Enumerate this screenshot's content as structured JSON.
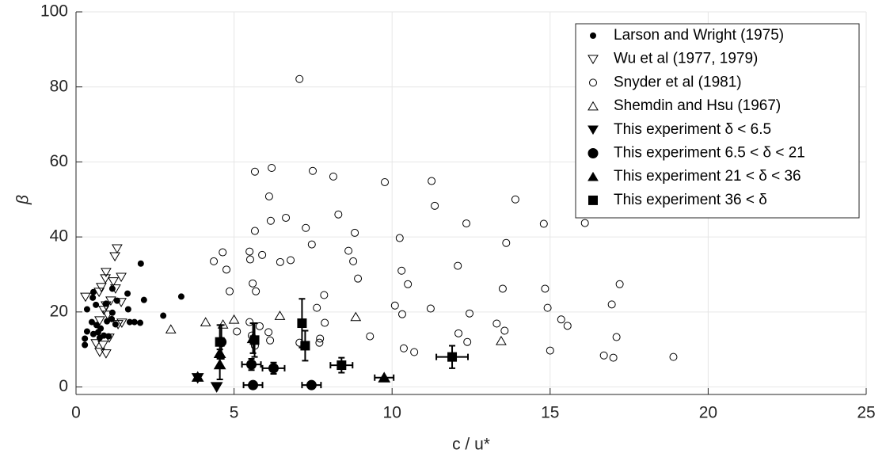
{
  "chart_data": {
    "type": "scatter",
    "x_label": "c / u*",
    "y_label": "β",
    "xlim": [
      0,
      25
    ],
    "ylim": [
      -2,
      100
    ],
    "xticks": [
      0,
      5,
      10,
      15,
      20,
      25
    ],
    "yticks": [
      0,
      20,
      40,
      60,
      80,
      100
    ],
    "grid": true,
    "legend": "upper right",
    "series": [
      {
        "name": "Larson and Wright (1975)",
        "color": "#000000",
        "marker": "circle",
        "filled": true,
        "size": 3.5,
        "x": [
          0.28,
          0.28,
          0.35,
          0.35,
          0.5,
          0.53,
          0.55,
          0.63,
          0.65,
          0.55,
          0.7,
          0.78,
          0.75,
          0.88,
          0.95,
          0.98,
          1.03,
          1.13,
          1.15,
          1.25,
          1.3,
          1.63,
          1.65,
          1.7,
          1.85,
          2.03,
          2.05,
          2.15,
          2.76,
          3.33,
          1.15
        ],
        "y": [
          11.2,
          12.9,
          14.8,
          20.7,
          17.3,
          23.8,
          25.3,
          21.9,
          16.5,
          14.1,
          14.6,
          15.6,
          13.1,
          13.7,
          22.2,
          17.5,
          13.5,
          18.1,
          26.2,
          16.7,
          23.0,
          24.9,
          20.7,
          17.3,
          17.3,
          17.1,
          32.9,
          23.2,
          19.0,
          24.1,
          19.8
        ]
      },
      {
        "name": "Wu et al (1977, 1979)",
        "color": "#000000",
        "marker": "triangle-down",
        "filled": false,
        "size": 6,
        "x": [
          0.3,
          0.73,
          0.8,
          0.93,
          0.95,
          0.95,
          1.0,
          0.63,
          0.75,
          0.95,
          0.85,
          0.75,
          1.18,
          1.25,
          1.23,
          1.3,
          1.43,
          1.43,
          1.33,
          1.45,
          0.88,
          1.1,
          1.05
        ],
        "y": [
          24,
          25.3,
          26.6,
          28.9,
          30.6,
          21.7,
          19.2,
          11.6,
          9.3,
          8.9,
          11.2,
          17.7,
          28.1,
          26.2,
          34.8,
          36.9,
          29.3,
          22.6,
          16.7,
          17.1,
          20.5,
          23.0,
          13.1
        ]
      },
      {
        "name": "Snyder et al (1981)",
        "color": "#000000",
        "marker": "circle",
        "filled": false,
        "size": 4.5,
        "x": [
          7.07,
          6.19,
          5.66,
          7.49,
          8.14,
          9.77,
          11.25,
          11.35,
          13.9,
          16.1,
          14.8,
          12.35,
          6.11,
          6.16,
          6.64,
          8.3,
          5.66,
          7.27,
          8.82,
          10.24,
          4.36,
          4.64,
          4.76,
          5.49,
          5.51,
          5.89,
          6.46,
          6.79,
          7.46,
          8.62,
          8.77,
          10.3,
          12.08,
          13.61,
          8.92,
          4.86,
          5.59,
          5.69,
          10.5,
          13.5,
          14.84,
          17.2,
          7.62,
          7.85,
          10.09,
          11.22,
          14.92,
          16.95,
          10.32,
          12.45,
          5.09,
          5.49,
          5.81,
          6.09,
          6.14,
          7.07,
          7.72,
          7.87,
          5.56,
          5.66,
          9.3,
          12.1,
          13.31,
          13.56,
          12.38,
          10.37,
          10.7,
          15.0,
          15.35,
          15.55,
          17.1,
          16.7,
          17.0,
          18.9,
          7.7
        ],
        "y": [
          82.1,
          58.4,
          57.4,
          57.6,
          56.1,
          54.6,
          54.9,
          48.3,
          50.0,
          43.7,
          43.5,
          43.6,
          50.8,
          44.3,
          45.1,
          46.0,
          41.6,
          42.4,
          41.1,
          39.7,
          33.5,
          35.9,
          31.3,
          36.1,
          34.0,
          35.2,
          33.3,
          33.8,
          38.0,
          36.3,
          33.5,
          31.0,
          32.3,
          38.4,
          28.9,
          25.5,
          27.6,
          25.5,
          27.4,
          26.2,
          26.2,
          27.4,
          21.1,
          24.5,
          21.7,
          20.9,
          21.1,
          22.0,
          19.4,
          19.6,
          14.8,
          17.3,
          16.2,
          14.6,
          12.4,
          11.8,
          12.9,
          17.1,
          13.7,
          11.0,
          13.5,
          14.3,
          16.9,
          15.0,
          12.0,
          10.3,
          9.3,
          9.7,
          18.0,
          16.3,
          13.3,
          8.4,
          7.8,
          8.0,
          11.8
        ]
      },
      {
        "name": "Shemdin and Hsu (1967)",
        "color": "#000000",
        "marker": "triangle-up",
        "filled": false,
        "size": 6,
        "x": [
          3.0,
          4.1,
          4.65,
          5.0,
          6.45,
          8.85,
          13.45
        ],
        "y": [
          15.4,
          17.3,
          16.7,
          18.0,
          19.0,
          18.7,
          12.3
        ]
      },
      {
        "name": "This experiment δ < 6.5",
        "color": "#000000",
        "marker": "triangle-down",
        "filled": true,
        "size": 7,
        "x": [
          3.85,
          4.45
        ],
        "y": [
          2.4,
          0.0
        ]
      },
      {
        "name": "This experiment 6.5 < δ < 21",
        "color": "#000000",
        "marker": "circle",
        "filled": true,
        "size": 6,
        "x": [
          4.6,
          5.55,
          6.25,
          5.6,
          7.45
        ],
        "y": [
          12,
          6,
          5,
          0.5,
          0.5
        ],
        "xerr": [
          null,
          0.3,
          0.35,
          0.3,
          0.3
        ],
        "yerr": [
          4.5,
          1.5,
          1.5,
          null,
          null
        ]
      },
      {
        "name": "This experiment 21 < δ < 36",
        "color": "#000000",
        "marker": "triangle-up",
        "filled": true,
        "size": 7,
        "x": [
          3.85,
          4.55,
          4.55,
          5.6,
          9.75
        ],
        "y": [
          2.7,
          6,
          9,
          13,
          2.5
        ],
        "xerr": [
          null,
          null,
          null,
          null,
          0.3
        ],
        "yerr": [
          null,
          4,
          null,
          4,
          null
        ]
      },
      {
        "name": "This experiment 36 < δ",
        "color": "#000000",
        "marker": "square",
        "filled": true,
        "size": 5.5,
        "x": [
          4.55,
          5.65,
          7.15,
          7.25,
          8.4,
          11.9
        ],
        "y": [
          12,
          12.5,
          17,
          11,
          5.8,
          8
        ],
        "xerr": [
          null,
          null,
          null,
          null,
          0.35,
          0.5
        ],
        "yerr": [
          4.5,
          4.5,
          6.5,
          4,
          2,
          3
        ]
      }
    ]
  }
}
